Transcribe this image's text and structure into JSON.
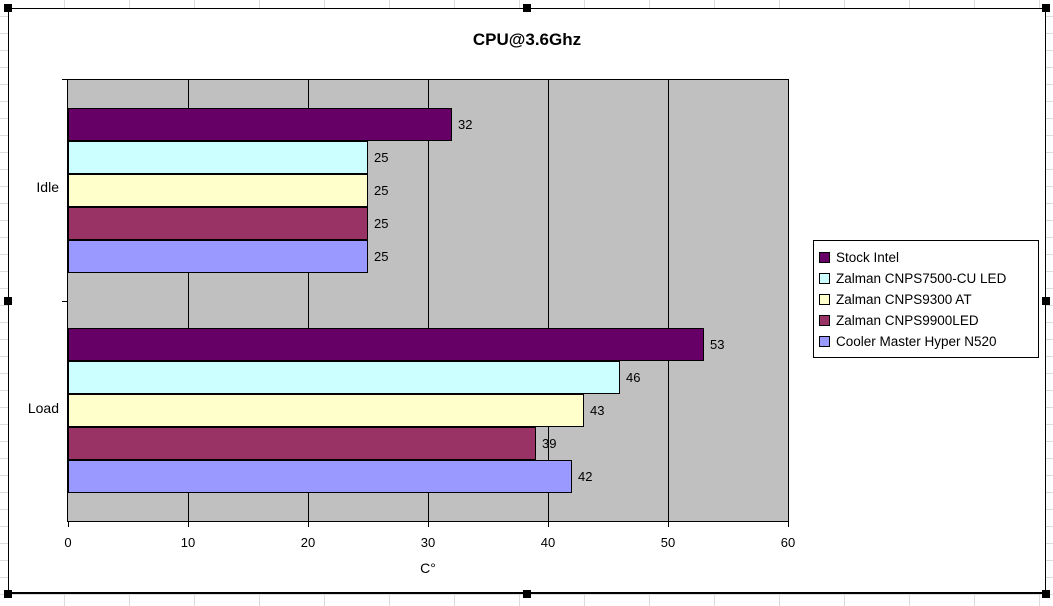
{
  "chart_data": {
    "type": "bar",
    "orientation": "horizontal",
    "title": "CPU@3.6Ghz",
    "xlabel": "C°",
    "categories": [
      "Idle",
      "Load"
    ],
    "series": [
      {
        "name": "Stock Intel",
        "color": "#660066",
        "values": [
          32,
          53
        ]
      },
      {
        "name": "Zalman CNPS7500-CU LED",
        "color": "#CCFFFF",
        "values": [
          25,
          46
        ]
      },
      {
        "name": "Zalman CNPS9300 AT",
        "color": "#FFFFCC",
        "values": [
          25,
          43
        ]
      },
      {
        "name": "Zalman CNPS9900LED",
        "color": "#993366",
        "values": [
          25,
          39
        ]
      },
      {
        "name": "Cooler Master Hyper N520",
        "color": "#9999FF",
        "values": [
          25,
          42
        ]
      }
    ],
    "xlim": [
      0,
      60
    ],
    "xticks": [
      0,
      10,
      20,
      30,
      40,
      50,
      60
    ],
    "data_labels": true,
    "grid": true,
    "legend_position": "right",
    "colors": {
      "plot_bg": "#C0C0C0",
      "chart_bg": "#FFFFFF",
      "grid_color": "#000000",
      "text_color": "#000000"
    }
  }
}
